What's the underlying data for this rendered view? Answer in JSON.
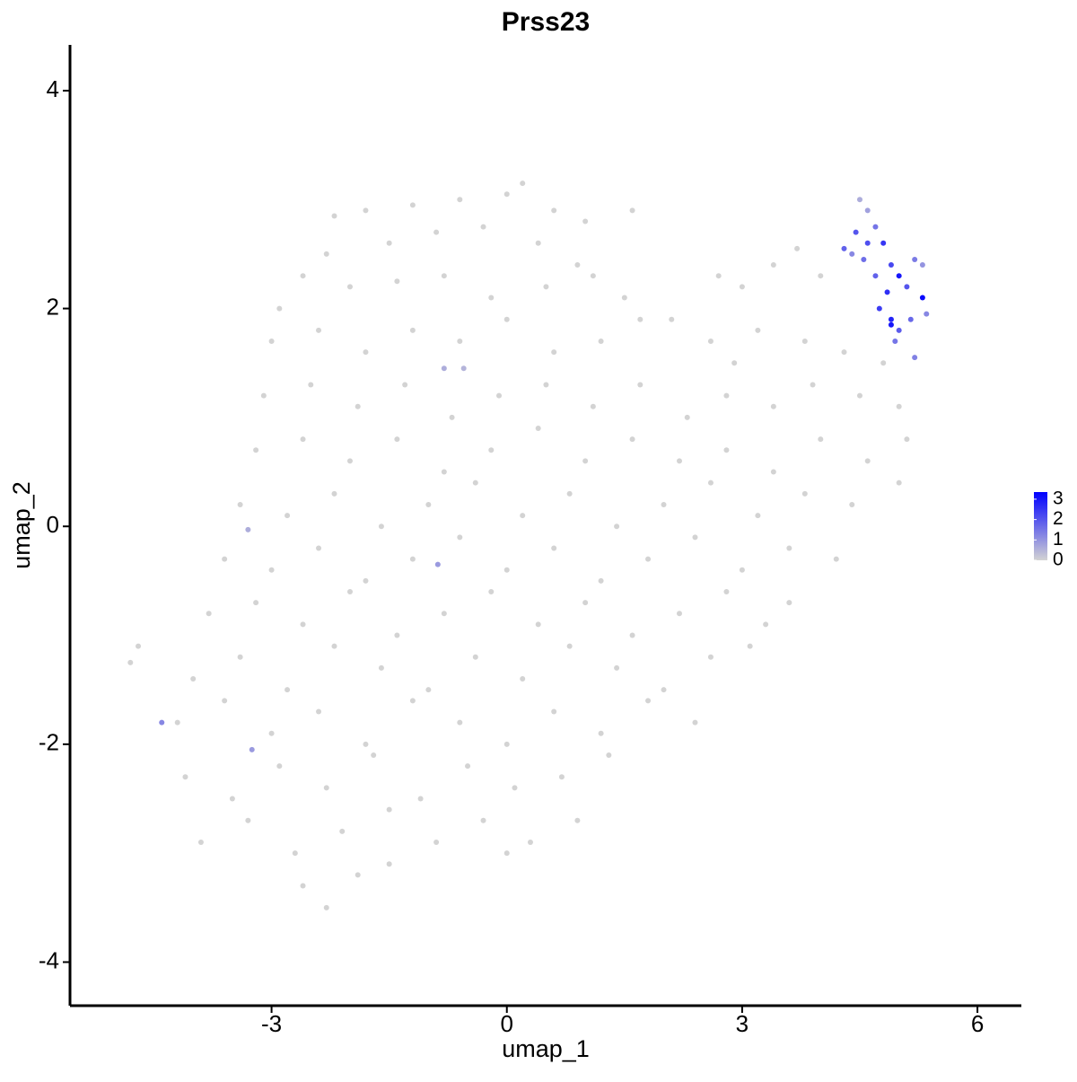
{
  "chart_data": {
    "type": "scatter",
    "title": "Prss23",
    "x_label": "umap_1",
    "y_label": "umap_2",
    "xlim": [
      -5.57,
      6.56
    ],
    "xticks": [
      -3,
      0,
      3,
      6
    ],
    "ylim": [
      -4.4,
      4.42
    ],
    "yticks": [
      -4,
      -2,
      0,
      2,
      4
    ],
    "color_low": "#d3d3d3",
    "color_high": "#0000ff",
    "color_lim": [
      0,
      3.35
    ],
    "color_ticks": [
      0,
      1,
      2,
      3
    ],
    "x": [
      -1.8,
      -1.2,
      -0.6,
      0,
      0.2,
      0.6,
      -2.2,
      1.0,
      1.6,
      -1.5,
      -0.9,
      -0.3,
      0.4,
      -2.3,
      0.9,
      -2.6,
      -2.0,
      -1.4,
      -0.8,
      -0.2,
      0.5,
      1.1,
      1.5,
      -2.9,
      3.4,
      3.7,
      3.0,
      2.7,
      4.0,
      -3.0,
      -2.4,
      -1.8,
      -1.2,
      -0.6,
      0,
      0.6,
      1.2,
      1.7,
      2.1,
      2.6,
      3.2,
      3.8,
      4.3,
      2.9,
      -3.1,
      -2.5,
      -1.9,
      -1.3,
      -0.7,
      -0.1,
      0.5,
      1.1,
      1.7,
      2.3,
      2.8,
      3.4,
      3.9,
      4.5,
      5.0,
      4.8,
      -3.2,
      -2.6,
      -2.0,
      -1.4,
      -0.8,
      -0.2,
      0.4,
      1.0,
      1.6,
      2.2,
      2.8,
      3.4,
      4.0,
      4.6,
      5.1,
      5.0,
      -3.4,
      -2.8,
      -2.2,
      -1.6,
      -1.0,
      -0.4,
      0.2,
      0.8,
      1.4,
      2.0,
      2.6,
      3.2,
      3.8,
      4.4,
      -3.6,
      -3.0,
      -2.4,
      -1.8,
      -1.2,
      -0.6,
      0,
      0.6,
      1.2,
      1.8,
      2.4,
      3.0,
      3.6,
      4.2,
      -3.8,
      -3.2,
      -2.6,
      -2.0,
      -1.4,
      -0.8,
      -0.2,
      0.4,
      1.0,
      1.6,
      2.2,
      2.8,
      3.3,
      3.6,
      -4.8,
      -4.7,
      -4.0,
      -3.4,
      -2.8,
      -2.2,
      -1.6,
      -1.0,
      -0.4,
      0.2,
      0.8,
      1.4,
      2.0,
      2.6,
      3.1,
      -4.2,
      -3.6,
      -3.0,
      -2.4,
      -1.8,
      -1.2,
      -0.6,
      0,
      0.6,
      1.2,
      1.8,
      2.4,
      -4.1,
      -3.5,
      -2.9,
      -2.3,
      -1.7,
      -1.1,
      -0.5,
      0.1,
      0.7,
      1.3,
      -3.9,
      -3.3,
      -2.7,
      -2.1,
      -1.5,
      -0.9,
      -0.3,
      0.3,
      0.9,
      -2.6,
      -2.3,
      -1.9,
      -1.5,
      0,
      -4.4,
      -3.25,
      -0.88,
      -3.3,
      -0.8,
      -0.55,
      4.5,
      4.6,
      4.45,
      4.3,
      4.7,
      4.8,
      4.55,
      4.9,
      5.0,
      5.2,
      5.3,
      4.7,
      4.85,
      5.1,
      5.3,
      5.35,
      4.75,
      4.9,
      5.0,
      5.15,
      4.95,
      5.2,
      4.9,
      4.6,
      4.4
    ],
    "values": [
      2.9,
      2.95,
      3.0,
      3.05,
      3.15,
      2.9,
      2.85,
      2.8,
      2.9,
      2.6,
      2.7,
      2.75,
      2.6,
      2.5,
      2.4,
      2.3,
      2.2,
      2.25,
      2.3,
      2.1,
      2.2,
      2.3,
      2.1,
      2.0,
      2.4,
      2.55,
      2.2,
      2.3,
      2.3,
      1.7,
      1.8,
      1.6,
      1.8,
      1.7,
      1.9,
      1.6,
      1.7,
      1.9,
      1.9,
      1.7,
      1.8,
      1.7,
      1.6,
      1.5,
      1.2,
      1.3,
      1.1,
      1.3,
      1.0,
      1.2,
      1.3,
      1.1,
      1.3,
      1.0,
      1.2,
      1.1,
      1.3,
      1.2,
      1.1,
      1.5,
      0.7,
      0.8,
      0.6,
      0.8,
      0.5,
      0.7,
      0.9,
      0.6,
      0.8,
      0.6,
      0.7,
      0.5,
      0.8,
      0.6,
      0.8,
      0.4,
      0.2,
      0.1,
      0.3,
      0.0,
      0.2,
      0.4,
      0.1,
      0.3,
      0.0,
      0.2,
      0.4,
      0.1,
      0.3,
      0.2,
      -0.3,
      -0.4,
      -0.2,
      -0.5,
      -0.3,
      -0.1,
      -0.4,
      -0.2,
      -0.5,
      -0.3,
      -0.1,
      -0.4,
      -0.2,
      -0.3,
      -0.8,
      -0.7,
      -0.9,
      -0.6,
      -1.0,
      -0.8,
      -0.6,
      -0.9,
      -0.7,
      -1.0,
      -0.8,
      -0.6,
      -0.9,
      -0.7,
      -1.25,
      -1.1,
      -1.4,
      -1.2,
      -1.5,
      -1.1,
      -1.3,
      -1.5,
      -1.2,
      -1.4,
      -1.1,
      -1.3,
      -1.5,
      -1.2,
      -1.1,
      -1.8,
      -1.6,
      -1.9,
      -1.7,
      -2.0,
      -1.6,
      -1.8,
      -2.0,
      -1.7,
      -1.9,
      -1.6,
      -1.8,
      -2.3,
      -2.5,
      -2.2,
      -2.4,
      -2.1,
      -2.5,
      -2.2,
      -2.4,
      -2.3,
      -2.1,
      -2.9,
      -2.7,
      -3.0,
      -2.8,
      -2.6,
      -2.9,
      -2.7,
      -2.9,
      -2.7,
      -3.3,
      -3.5,
      -3.2,
      -3.1,
      -3.0,
      -1.8,
      -2.05,
      -0.35,
      -0.03,
      1.45,
      1.45,
      3.0,
      2.9,
      2.7,
      2.55,
      2.75,
      2.6,
      2.45,
      2.4,
      2.3,
      2.45,
      2.4,
      2.3,
      2.15,
      2.2,
      2.1,
      1.95,
      2.0,
      1.9,
      1.8,
      1.9,
      1.7,
      1.55,
      1.85,
      2.6,
      2.5
    ],
    "expression": [
      0,
      0,
      0,
      0,
      0,
      0,
      0,
      0,
      0,
      0,
      0,
      0,
      0,
      0,
      0,
      0,
      0,
      0,
      0,
      0,
      0,
      0,
      0,
      0,
      0,
      0,
      0,
      0,
      0,
      0,
      0,
      0,
      0,
      0,
      0,
      0,
      0,
      0,
      0,
      0,
      0,
      0,
      0,
      0,
      0,
      0,
      0,
      0,
      0,
      0,
      0,
      0,
      0,
      0,
      0,
      0,
      0,
      0,
      0,
      0,
      0,
      0,
      0,
      0,
      0,
      0,
      0,
      0,
      0,
      0,
      0,
      0,
      0,
      0,
      0,
      0,
      0,
      0,
      0,
      0,
      0,
      0,
      0,
      0,
      0,
      0,
      0,
      0,
      0,
      0,
      0,
      0,
      0,
      0,
      0,
      0,
      0,
      0,
      0,
      0,
      0,
      0,
      0,
      0,
      0,
      0,
      0,
      0,
      0,
      0,
      0,
      0,
      0,
      0,
      0,
      0,
      0,
      0,
      0,
      0,
      0,
      0,
      0,
      0,
      0,
      0,
      0,
      0,
      0,
      0,
      0,
      0,
      0,
      0,
      0,
      0,
      0,
      0,
      0,
      0,
      0,
      0,
      0,
      0,
      0,
      0,
      0,
      0,
      0,
      0,
      0,
      0,
      0,
      0,
      0,
      0,
      0,
      0,
      0,
      0,
      0,
      0,
      0,
      0,
      0,
      0,
      0,
      0,
      0,
      1.2,
      0.9,
      0.9,
      0.6,
      0.6,
      0.5,
      0.6,
      0.8,
      2.0,
      1.8,
      1.5,
      2.5,
      1.6,
      2.2,
      3.0,
      1.4,
      1.0,
      1.8,
      2.6,
      2.0,
      3.2,
      1.2,
      2.4,
      2.8,
      1.9,
      1.7,
      1.5,
      1.3,
      3.0,
      2.1,
      1.2
    ]
  }
}
